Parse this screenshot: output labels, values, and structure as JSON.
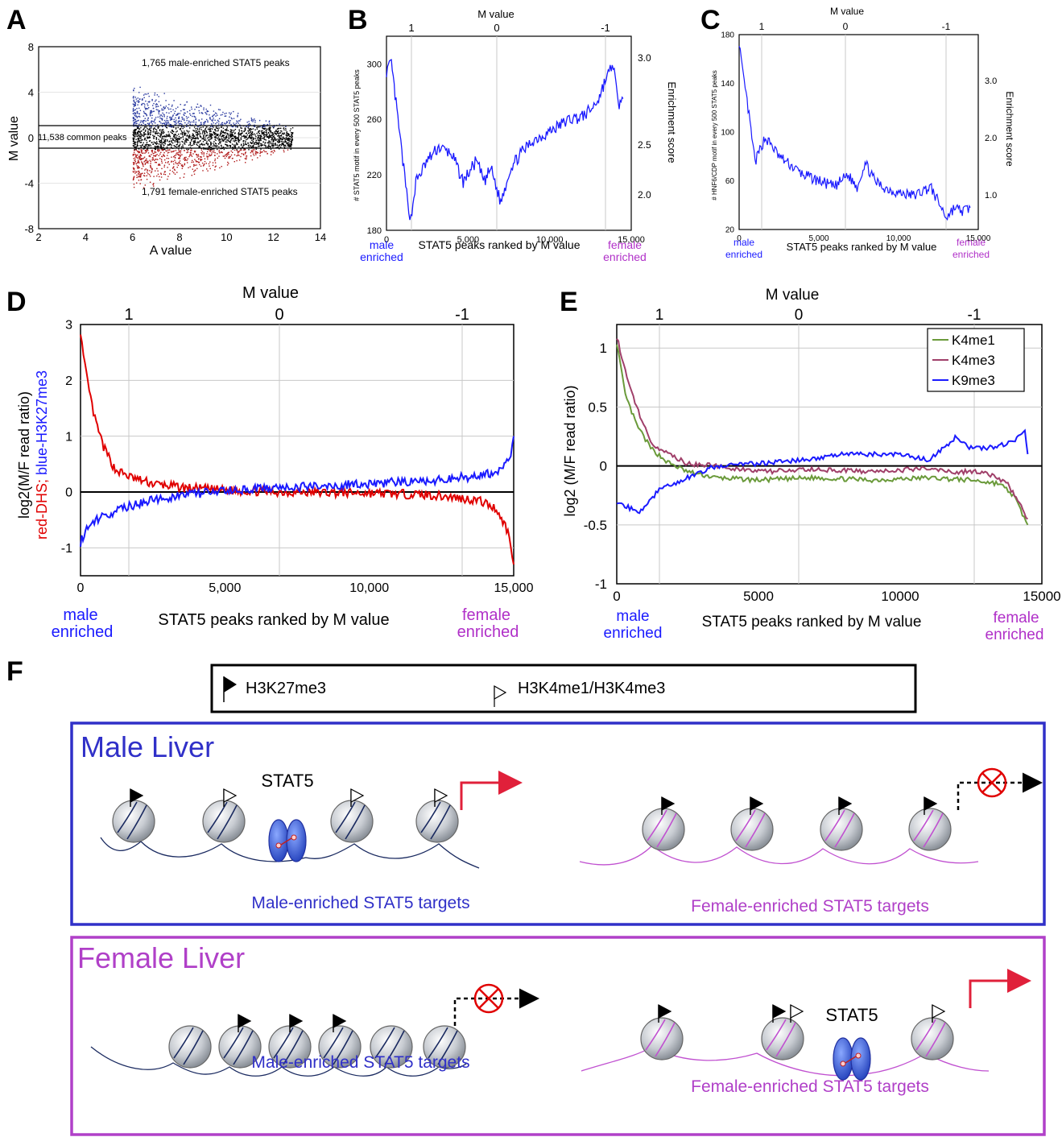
{
  "panel_letters": [
    "A",
    "B",
    "C",
    "D",
    "E",
    "F"
  ],
  "colors": {
    "blue": "#1a1aff",
    "red": "#e00000",
    "magenta": "#b030c8",
    "green": "#6a9a3a",
    "maroon": "#a0406a",
    "black": "#000000",
    "box_blue": "#3030c8",
    "box_magenta": "#b040c8"
  },
  "labels": {
    "male_enriched_l1": "male",
    "male_enriched_l2": "enriched",
    "female_enriched_l1": "female",
    "female_enriched_l2": "enriched",
    "stat5_peaks_xlabel": "STAT5 peaks ranked by M value",
    "m_value": "M value"
  },
  "chart_data": [
    {
      "panel": "A",
      "type": "scatter",
      "xlabel": "A value",
      "ylabel": "M value",
      "xlim": [
        2,
        14
      ],
      "ylim": [
        -8,
        8
      ],
      "xticks": [
        "2",
        "4",
        "6",
        "8",
        "10",
        "12",
        "14"
      ],
      "yticks": [
        "8",
        "4",
        "0",
        "-4",
        "-8"
      ],
      "thresholds": [
        1,
        -1
      ],
      "annotations": {
        "male": "1,765 male-enriched STAT5 peaks",
        "common": "11,538 common peaks",
        "female": "1,791 female-enriched STAT5 peaks"
      },
      "series": [
        {
          "name": "male-enriched",
          "color": "#2a3aa0",
          "count": 1765
        },
        {
          "name": "common",
          "color": "#000000",
          "count": 11538
        },
        {
          "name": "female-enriched",
          "color": "#b01818",
          "count": 1791
        }
      ]
    },
    {
      "panel": "B",
      "type": "line",
      "xlabel": "STAT5 peaks ranked by M value",
      "ylabel": "# STAT5  motif in every 500 STAT5 peaks",
      "y2label": "Enrichment score",
      "toplabel": "M value",
      "xlim": [
        0,
        15000
      ],
      "ylim": [
        180,
        320
      ],
      "xticks": [
        "0",
        "5,000",
        "10,000",
        "15,000"
      ],
      "yticks": [
        "180",
        "220",
        "260",
        "300"
      ],
      "y2ticks": [
        "2.0",
        "2.5",
        "3.0"
      ],
      "topticks": [
        "1",
        "0",
        "-1"
      ],
      "series": [
        {
          "color": "#1a1aff",
          "x": [
            0,
            300,
            700,
            1000,
            1300,
            1500,
            1800,
            2500,
            3200,
            4000,
            4700,
            5500,
            6000,
            6400,
            7000,
            7600,
            8200,
            9000,
            9800,
            10500,
            11200,
            12000,
            12600,
            13000,
            13400,
            13900,
            14200,
            14500
          ],
          "y": [
            295,
            300,
            260,
            230,
            200,
            188,
            215,
            230,
            240,
            235,
            215,
            230,
            215,
            225,
            200,
            225,
            235,
            245,
            250,
            255,
            260,
            262,
            268,
            275,
            288,
            300,
            270,
            275
          ]
        }
      ]
    },
    {
      "panel": "C",
      "type": "line",
      "xlabel": "STAT5 peaks ranked by M value",
      "ylabel": "# HNF6/CDP motif in every 500 STAT5 peaks",
      "y2label": "Enrichment score",
      "toplabel": "M value",
      "xlim": [
        0,
        15000
      ],
      "ylim": [
        20,
        180
      ],
      "xticks": [
        "0",
        "5,000",
        "10,000",
        "15,000"
      ],
      "yticks": [
        "20",
        "60",
        "100",
        "140",
        "180"
      ],
      "y2ticks": [
        "1.0",
        "2.0",
        "3.0"
      ],
      "topticks": [
        "1",
        "0",
        "-1"
      ],
      "series": [
        {
          "color": "#1a1aff",
          "x": [
            0,
            200,
            500,
            800,
            1000,
            1300,
            1600,
            2000,
            2500,
            3000,
            3500,
            4000,
            5000,
            6000,
            6800,
            7400,
            7900,
            8500,
            9000,
            10000,
            11000,
            12000,
            12600,
            13000,
            13500,
            14000,
            14500
          ],
          "y": [
            175,
            150,
            125,
            95,
            75,
            85,
            95,
            90,
            80,
            75,
            70,
            65,
            60,
            55,
            65,
            55,
            75,
            60,
            55,
            50,
            48,
            55,
            40,
            30,
            38,
            35,
            38
          ]
        }
      ]
    },
    {
      "panel": "D",
      "type": "line",
      "xlabel": "STAT5 peaks ranked by M value",
      "ylabel_red": "red-DHS; ",
      "ylabel_blue": "blue-H3K27me3",
      "ylabel_main": "log2(M/F read ratio)",
      "toplabel": "M value",
      "xlim": [
        0,
        15000
      ],
      "ylim": [
        -1.5,
        3
      ],
      "xticks": [
        "0",
        "5,000",
        "10,000",
        "15,000"
      ],
      "yticks": [
        "3",
        "2",
        "1",
        "0",
        "-1"
      ],
      "topticks": [
        "1",
        "0",
        "-1"
      ],
      "series": [
        {
          "name": "DHS",
          "color": "#e00000",
          "x": [
            0,
            100,
            300,
            500,
            800,
            1200,
            1800,
            2500,
            3500,
            5000,
            7000,
            10000,
            12000,
            13000,
            13800,
            14400,
            14800,
            15000
          ],
          "y": [
            2.9,
            2.4,
            1.8,
            1.3,
            0.8,
            0.4,
            0.25,
            0.15,
            0.08,
            0.03,
            0.0,
            -0.02,
            -0.05,
            -0.1,
            -0.15,
            -0.3,
            -0.7,
            -1.3
          ]
        },
        {
          "name": "H3K27me3",
          "color": "#1a1aff",
          "x": [
            0,
            300,
            700,
            1200,
            2000,
            3000,
            4500,
            6000,
            8000,
            10000,
            12000,
            13000,
            14000,
            14500,
            14900,
            15000
          ],
          "y": [
            -0.9,
            -0.6,
            -0.45,
            -0.35,
            -0.2,
            -0.1,
            0.0,
            0.05,
            0.1,
            0.15,
            0.2,
            0.25,
            0.3,
            0.4,
            0.7,
            1.0
          ]
        }
      ]
    },
    {
      "panel": "E",
      "type": "line",
      "xlabel": "STAT5 peaks ranked by M value",
      "ylabel": "log2 (M/F read ratio)",
      "toplabel": "M value",
      "xlim": [
        0,
        15000
      ],
      "ylim": [
        -1,
        1.2
      ],
      "xticks": [
        "0",
        "5000",
        "10000",
        "15000"
      ],
      "yticks": [
        "1",
        "0.5",
        "0",
        "-0.5",
        "-1"
      ],
      "topticks": [
        "1",
        "0",
        "-1"
      ],
      "legend": "top-right",
      "series": [
        {
          "name": "K4me1",
          "color": "#6a9a3a",
          "x": [
            0,
            300,
            700,
            1200,
            1800,
            2500,
            3500,
            5000,
            7000,
            9000,
            11000,
            12500,
            13500,
            14000,
            14500
          ],
          "y": [
            1.05,
            0.6,
            0.35,
            0.15,
            0.03,
            -0.05,
            -0.1,
            -0.12,
            -0.1,
            -0.12,
            -0.1,
            -0.12,
            -0.15,
            -0.25,
            -0.5
          ]
        },
        {
          "name": "K4me3",
          "color": "#a0406a",
          "x": [
            0,
            300,
            700,
            1200,
            1800,
            2500,
            3500,
            5000,
            7000,
            9000,
            11000,
            12000,
            13000,
            13800,
            14500
          ],
          "y": [
            1.1,
            0.8,
            0.5,
            0.2,
            0.1,
            0.02,
            0.0,
            -0.05,
            -0.03,
            -0.05,
            -0.02,
            -0.05,
            -0.05,
            -0.15,
            -0.45
          ]
        },
        {
          "name": "K9me3",
          "color": "#1a1aff",
          "x": [
            0,
            400,
            800,
            1500,
            2500,
            3500,
            5000,
            6500,
            8000,
            10000,
            11000,
            12000,
            12500,
            13000,
            14000,
            14400,
            14500
          ],
          "y": [
            -0.3,
            -0.35,
            -0.4,
            -0.2,
            -0.1,
            0.0,
            0.02,
            0.05,
            0.1,
            0.1,
            0.05,
            0.25,
            0.15,
            0.15,
            0.2,
            0.3,
            0.1
          ]
        }
      ]
    }
  ],
  "schematic": {
    "legend": {
      "filled_flag": "H3K27me3",
      "open_flag": "H3K4me1/H3K4me3"
    },
    "male_box": {
      "title": "Male Liver",
      "stat5": "STAT5",
      "targets_male": "Male-enriched STAT5 targets",
      "targets_female": "Female-enriched STAT5 targets"
    },
    "female_box": {
      "title": "Female Liver",
      "stat5": "STAT5",
      "targets_male": "Male-enriched STAT5 targets",
      "targets_female": "Female-enriched STAT5 targets"
    }
  }
}
